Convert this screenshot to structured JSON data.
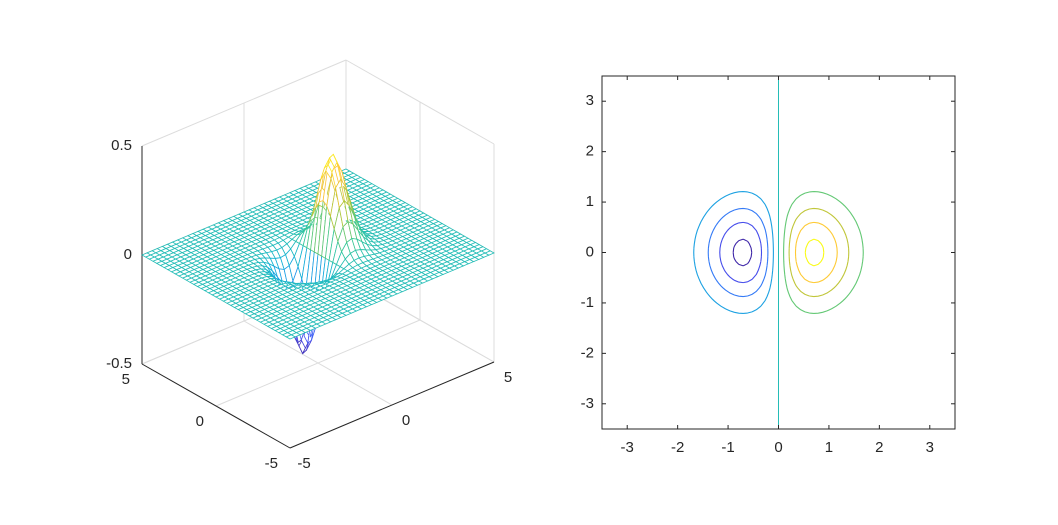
{
  "chart_data": [
    {
      "type": "surface",
      "style": "mesh",
      "function": "z = x * exp(-x^2 - y^2)",
      "xlim": [
        -5,
        5
      ],
      "ylim": [
        -5,
        5
      ],
      "zlim": [
        -0.5,
        0.5
      ],
      "grid_points": 41,
      "z_extremes": {
        "max": 0.4289,
        "min": -0.4289,
        "max_at": [
          0.707,
          0
        ],
        "min_at": [
          -0.707,
          0
        ]
      },
      "grid": true,
      "colormap": "parula",
      "x_ticks": [
        "-5",
        "0",
        "5"
      ],
      "y_ticks": [
        "-5",
        "0",
        "5"
      ],
      "z_ticks": [
        "-0.5",
        "0",
        "0.5"
      ]
    },
    {
      "type": "contour",
      "function": "z = x * exp(-x^2 - y^2)",
      "xlim": [
        -3.5,
        3.5
      ],
      "ylim": [
        -3.5,
        3.5
      ],
      "levels": [
        -0.4,
        -0.3,
        -0.2,
        -0.1,
        0,
        0.1,
        0.2,
        0.3,
        0.4
      ],
      "colormap": "parula",
      "x_ticks": [
        "-3",
        "-2",
        "-1",
        "0",
        "1",
        "2",
        "3"
      ],
      "y_ticks": [
        "-3",
        "-2",
        "-1",
        "0",
        "1",
        "2",
        "3"
      ]
    }
  ]
}
